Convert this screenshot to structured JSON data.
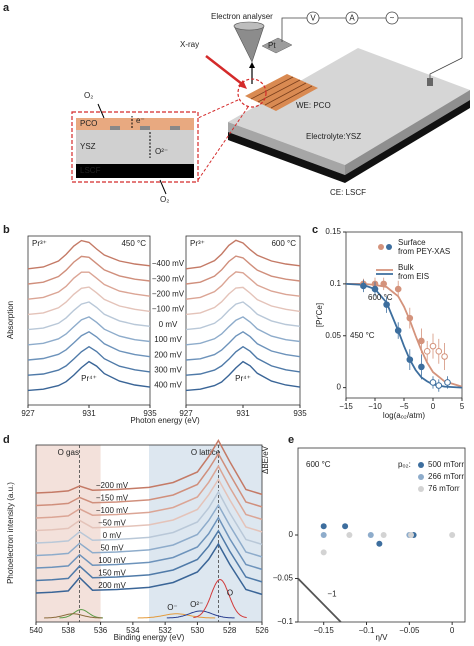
{
  "diagram": {
    "label": "a",
    "electron_analyser": "Electron analyser",
    "xray": "X-ray",
    "pt": "Pt",
    "we": "WE: PCO",
    "electrolyte": "Electrolyte:YSZ",
    "ce": "CE: LSCF",
    "voltmeter": "V",
    "ammeter": "A",
    "source": "~",
    "inset": {
      "o2_top": "O₂",
      "pco": "PCO",
      "electron": "e⁻",
      "ysz": "YSZ",
      "oxide_ion": "O²⁻",
      "lscf": "LSCF",
      "o2_bottom": "O₂"
    }
  },
  "chart_data": [
    {
      "type": "line",
      "panel_label": "b",
      "xlabel": "Photon energy (eV)",
      "ylabel": "Absorption",
      "xlim": [
        927,
        935
      ],
      "x": [
        927,
        928,
        929,
        929.5,
        930,
        930.5,
        931,
        931.5,
        932,
        933,
        934,
        935
      ],
      "series": [
        {
          "name": "−400 mV",
          "color": "#c47a66"
        },
        {
          "name": "−300 mV",
          "color": "#d08f7c"
        },
        {
          "name": "−200 mV",
          "color": "#dba595"
        },
        {
          "name": "−100 mV",
          "color": "#e4c3b9"
        },
        {
          "name": "0 mV",
          "color": "#b9c8d8"
        },
        {
          "name": "100 mV",
          "color": "#8eaccb"
        },
        {
          "name": "200 mV",
          "color": "#6d93bb"
        },
        {
          "name": "300 mV",
          "color": "#4f7aa8"
        },
        {
          "name": "400 mV",
          "color": "#3a6597"
        }
      ],
      "subplots": [
        {
          "title": "450 °C",
          "pr3_label": "Pr³⁺",
          "pr4_label": "Pr⁴⁺",
          "xticks": [
            927,
            931,
            935
          ],
          "values": [
            [
              0.04,
              0.1,
              0.3,
              0.52,
              0.8,
              0.98,
              0.92,
              0.7,
              0.5,
              0.3,
              0.2,
              0.14
            ],
            [
              0.04,
              0.1,
              0.29,
              0.5,
              0.77,
              0.96,
              0.93,
              0.72,
              0.51,
              0.31,
              0.2,
              0.14
            ],
            [
              0.04,
              0.1,
              0.28,
              0.47,
              0.74,
              0.94,
              0.94,
              0.74,
              0.53,
              0.31,
              0.21,
              0.14
            ],
            [
              0.04,
              0.09,
              0.26,
              0.45,
              0.71,
              0.91,
              0.95,
              0.76,
              0.54,
              0.32,
              0.21,
              0.14
            ],
            [
              0.04,
              0.09,
              0.25,
              0.43,
              0.68,
              0.89,
              0.96,
              0.78,
              0.55,
              0.33,
              0.21,
              0.15
            ],
            [
              0.04,
              0.09,
              0.24,
              0.4,
              0.64,
              0.87,
              0.97,
              0.79,
              0.56,
              0.33,
              0.21,
              0.15
            ],
            [
              0.04,
              0.09,
              0.23,
              0.38,
              0.61,
              0.85,
              0.98,
              0.81,
              0.58,
              0.34,
              0.22,
              0.15
            ],
            [
              0.04,
              0.08,
              0.21,
              0.35,
              0.58,
              0.82,
              0.99,
              0.83,
              0.59,
              0.34,
              0.22,
              0.15
            ],
            [
              0.04,
              0.08,
              0.2,
              0.33,
              0.55,
              0.8,
              1.0,
              0.85,
              0.6,
              0.35,
              0.22,
              0.15
            ]
          ]
        },
        {
          "title": "600 °C",
          "pr3_label": "Pr³⁺",
          "pr4_label": "Pr⁴⁺",
          "xticks": [
            927,
            931,
            935
          ],
          "values": [
            [
              0.04,
              0.1,
              0.31,
              0.53,
              0.82,
              0.99,
              0.9,
              0.68,
              0.49,
              0.3,
              0.2,
              0.14
            ],
            [
              0.04,
              0.1,
              0.3,
              0.51,
              0.79,
              0.97,
              0.91,
              0.7,
              0.5,
              0.3,
              0.2,
              0.14
            ],
            [
              0.04,
              0.1,
              0.29,
              0.49,
              0.76,
              0.95,
              0.92,
              0.72,
              0.51,
              0.31,
              0.2,
              0.14
            ],
            [
              0.04,
              0.09,
              0.27,
              0.46,
              0.72,
              0.92,
              0.94,
              0.75,
              0.53,
              0.32,
              0.21,
              0.14
            ],
            [
              0.04,
              0.09,
              0.25,
              0.43,
              0.68,
              0.89,
              0.96,
              0.78,
              0.55,
              0.33,
              0.21,
              0.15
            ],
            [
              0.04,
              0.09,
              0.24,
              0.4,
              0.64,
              0.86,
              0.97,
              0.8,
              0.57,
              0.33,
              0.21,
              0.15
            ],
            [
              0.04,
              0.08,
              0.22,
              0.37,
              0.6,
              0.84,
              0.98,
              0.82,
              0.58,
              0.34,
              0.22,
              0.15
            ],
            [
              0.04,
              0.08,
              0.21,
              0.35,
              0.57,
              0.82,
              0.99,
              0.84,
              0.6,
              0.35,
              0.22,
              0.15
            ],
            [
              0.04,
              0.08,
              0.2,
              0.32,
              0.54,
              0.79,
              1.0,
              0.86,
              0.61,
              0.35,
              0.22,
              0.15
            ]
          ]
        }
      ]
    },
    {
      "type": "scatter",
      "panel_label": "c",
      "xlabel": "log(aₒ₂/atm)",
      "ylabel": "[Pr′Ce]",
      "xlim": [
        -15,
        5
      ],
      "ylim": [
        -0.01,
        0.15
      ],
      "xticks": [
        {
          "value": -15,
          "label": "−15"
        },
        {
          "value": -10,
          "label": "−10"
        },
        {
          "value": -5,
          "label": "−5"
        },
        0,
        5
      ],
      "yticks": [
        0,
        0.05,
        0.1,
        0.15
      ],
      "legend": [
        {
          "lines": [
            "Surface",
            "from PEY-XAS"
          ],
          "kind": "marker",
          "colors": [
            "#d4937c",
            "#3d6e9e"
          ]
        },
        {
          "lines": [
            "Bulk",
            "from EIS"
          ],
          "kind": "line",
          "colors": [
            "#d4937c",
            "#3d6e9e"
          ]
        }
      ],
      "annotations": [
        {
          "text": "600 °C",
          "color": "#d4937c"
        },
        {
          "text": "450 °C",
          "color": "#3d6e9e"
        }
      ],
      "series": [
        {
          "kind": "curve",
          "color": "#d4937c",
          "x": [
            -15,
            -12,
            -10,
            -8,
            -6,
            -5,
            -4,
            -3,
            -2,
            -1,
            0,
            2,
            5
          ],
          "values": [
            0.1,
            0.1,
            0.099,
            0.097,
            0.088,
            0.078,
            0.065,
            0.05,
            0.036,
            0.024,
            0.015,
            0.006,
            0.001
          ]
        },
        {
          "kind": "curve",
          "color": "#3d6e9e",
          "x": [
            -15,
            -12,
            -10,
            -8,
            -6,
            -5,
            -4,
            -3,
            -2,
            -1,
            0,
            2,
            5
          ],
          "values": [
            0.1,
            0.099,
            0.095,
            0.082,
            0.055,
            0.04,
            0.027,
            0.017,
            0.01,
            0.006,
            0.003,
            0.001,
            0
          ]
        },
        {
          "kind": "points",
          "color": "#d4937c",
          "filled": true,
          "x": [
            -12,
            -10,
            -8.5,
            -6,
            -4,
            -2
          ],
          "values": [
            0.1,
            0.1,
            0.1,
            0.095,
            0.067,
            0.045
          ],
          "errors": [
            0.005,
            0.006,
            0.006,
            0.008,
            0.01,
            0.012
          ]
        },
        {
          "kind": "points",
          "color": "#d4937c",
          "filled": false,
          "x": [
            -1,
            0,
            1,
            2
          ],
          "values": [
            0.035,
            0.04,
            0.035,
            0.03
          ],
          "errors": [
            0.01,
            0.012,
            0.012,
            0.013
          ]
        },
        {
          "kind": "points",
          "color": "#3d6e9e",
          "filled": true,
          "x": [
            -12,
            -10,
            -8,
            -6,
            -4,
            -2
          ],
          "values": [
            0.098,
            0.095,
            0.08,
            0.055,
            0.027,
            0.02
          ],
          "errors": [
            0.006,
            0.007,
            0.008,
            0.008,
            0.01,
            0.012
          ]
        },
        {
          "kind": "points",
          "color": "#3d6e9e",
          "filled": false,
          "x": [
            0,
            1,
            2.5
          ],
          "values": [
            0.005,
            0.002,
            0.005
          ],
          "errors": [
            0.006,
            0.006,
            0.006
          ]
        }
      ]
    },
    {
      "type": "line",
      "panel_label": "d",
      "xlabel": "Binding energy (eV)",
      "ylabel": "Photoelectron intensity (a.u.)",
      "xlim": [
        540,
        526
      ],
      "xticks": [
        540,
        538,
        536,
        534,
        532,
        530,
        528,
        526
      ],
      "regions": [
        {
          "label": "O gas",
          "from": 540,
          "to": 536,
          "color": "#f3e1db"
        },
        {
          "label": "O lattice",
          "from": 533,
          "to": 526,
          "color": "#dde7f0"
        }
      ],
      "reference_lines": [
        537.3,
        528.7
      ],
      "x": [
        540,
        539,
        538,
        537.3,
        536.5,
        535,
        533,
        531.5,
        530,
        529.3,
        528.7,
        528,
        527,
        526
      ],
      "series": [
        {
          "name": "−200 mV",
          "color": "#c47a66",
          "values": [
            0.1,
            0.11,
            0.13,
            0.2,
            0.14,
            0.15,
            0.18,
            0.25,
            0.4,
            0.62,
            0.85,
            0.55,
            0.15,
            0.08
          ]
        },
        {
          "name": "−150 mV",
          "color": "#d08f7c",
          "values": [
            0.1,
            0.11,
            0.13,
            0.215,
            0.14,
            0.15,
            0.18,
            0.25,
            0.4,
            0.62,
            0.84,
            0.55,
            0.15,
            0.08
          ]
        },
        {
          "name": "−100 mV",
          "color": "#dba595",
          "values": [
            0.1,
            0.11,
            0.13,
            0.23,
            0.14,
            0.15,
            0.18,
            0.25,
            0.4,
            0.61,
            0.84,
            0.54,
            0.15,
            0.08
          ]
        },
        {
          "name": "−50 mV",
          "color": "#e4c3b9",
          "values": [
            0.1,
            0.11,
            0.13,
            0.245,
            0.14,
            0.15,
            0.18,
            0.25,
            0.4,
            0.61,
            0.83,
            0.54,
            0.15,
            0.08
          ]
        },
        {
          "name": "0 mV",
          "color": "#b9c8d8",
          "values": [
            0.1,
            0.11,
            0.13,
            0.26,
            0.14,
            0.15,
            0.18,
            0.25,
            0.4,
            0.6,
            0.83,
            0.53,
            0.15,
            0.08
          ]
        },
        {
          "name": "50 mV",
          "color": "#8eaccb",
          "values": [
            0.1,
            0.11,
            0.13,
            0.275,
            0.14,
            0.15,
            0.18,
            0.25,
            0.4,
            0.6,
            0.82,
            0.53,
            0.15,
            0.08
          ]
        },
        {
          "name": "100 mV",
          "color": "#6d93bb",
          "values": [
            0.1,
            0.11,
            0.13,
            0.29,
            0.14,
            0.15,
            0.18,
            0.25,
            0.4,
            0.59,
            0.82,
            0.52,
            0.15,
            0.08
          ]
        },
        {
          "name": "150 mV",
          "color": "#4f7aa8",
          "values": [
            0.1,
            0.11,
            0.13,
            0.305,
            0.14,
            0.15,
            0.18,
            0.25,
            0.4,
            0.59,
            0.81,
            0.52,
            0.15,
            0.08
          ]
        },
        {
          "name": "200 mV",
          "color": "#3a6597",
          "values": [
            0.1,
            0.11,
            0.13,
            0.32,
            0.14,
            0.15,
            0.18,
            0.25,
            0.4,
            0.58,
            0.8,
            0.51,
            0.15,
            0.08
          ]
        }
      ],
      "components": [
        {
          "color": "#5b9b46",
          "center": 537.2,
          "height": 0.12,
          "width": 0.45
        },
        {
          "color": "#8a6a3a",
          "center": 537.7,
          "height": 0.06,
          "width": 0.6
        },
        {
          "color": "#e39a3b",
          "center": 531.3,
          "height": 0.06,
          "width": 0.8,
          "label": "O⁻"
        },
        {
          "color": "#2b3f8f",
          "center": 529.8,
          "height": 0.1,
          "width": 0.7,
          "label": "O²⁻"
        },
        {
          "color": "#d23b3b",
          "center": 528.6,
          "height": 0.55,
          "width": 0.55,
          "label": "O"
        }
      ]
    },
    {
      "type": "scatter",
      "panel_label": "e",
      "xlabel": "η/V",
      "ylabel": "ΔBE/eV",
      "annotation": "600 °C",
      "legend_title": "pₒ₂:",
      "xlim": [
        -0.18,
        0.015
      ],
      "ylim": [
        -0.1,
        0.1
      ],
      "xticks": [
        {
          "value": -0.15,
          "label": "−0.15"
        },
        {
          "value": -0.1,
          "label": "−0.1"
        },
        {
          "value": -0.05,
          "label": "−0.05"
        },
        0
      ],
      "yticks": [
        {
          "value": -0.1,
          "label": "−0.1"
        },
        {
          "value": -0.05,
          "label": "−0.05"
        },
        0
      ],
      "reference_line": {
        "label": "−1",
        "x": [
          -0.18,
          -0.13
        ],
        "y": [
          -0.05,
          -0.1
        ]
      },
      "series": [
        {
          "name": "500 mTorr",
          "color": "#3d6e9e",
          "x": [
            -0.15,
            -0.125,
            -0.085,
            -0.045
          ],
          "values": [
            0.01,
            0.01,
            -0.01,
            0
          ]
        },
        {
          "name": "266 mTorr",
          "color": "#8eaccb",
          "x": [
            -0.15,
            -0.095,
            -0.05
          ],
          "values": [
            0,
            0,
            0
          ]
        },
        {
          "name": "76 mTorr",
          "color": "#d3d3d3",
          "x": [
            -0.15,
            -0.12,
            -0.08,
            -0.048,
            0
          ],
          "values": [
            -0.02,
            0,
            0,
            0,
            0
          ]
        }
      ]
    }
  ]
}
